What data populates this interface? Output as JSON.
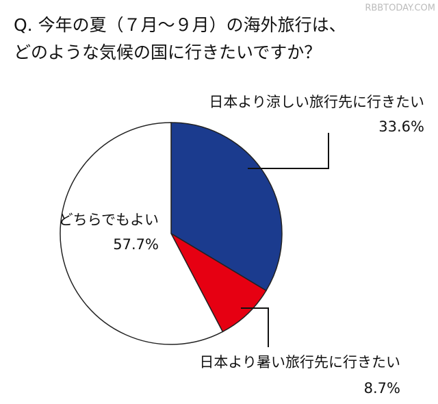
{
  "chart_data": {
    "type": "pie",
    "title_lines": [
      "Q. 今年の夏（７月～９月）の海外旅行は、",
      "どのような気候の国に行きたいですか？"
    ],
    "watermark": "RBBTODAY.COM",
    "categories": [
      "日本より涼しい旅行先に行きたい",
      "日本より暑い旅行先に行きたい",
      "どちらでもよい"
    ],
    "values": [
      33.6,
      8.7,
      57.7
    ],
    "value_labels": [
      "33.6%",
      "8.7%",
      "57.7%"
    ],
    "colors": [
      "#1b3b8e",
      "#e60012",
      "#ffffff"
    ]
  }
}
